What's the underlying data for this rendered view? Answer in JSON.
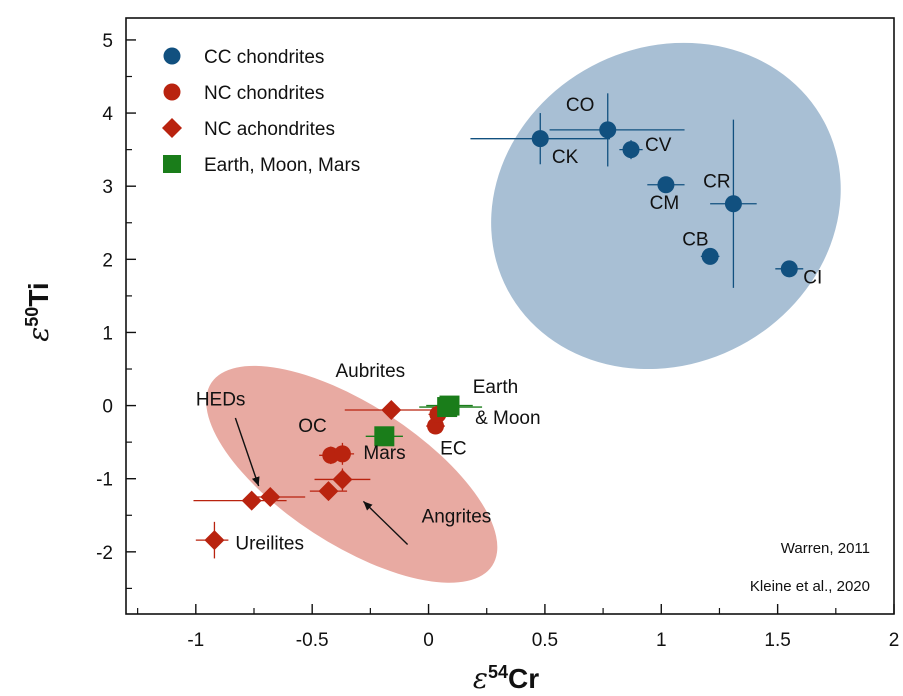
{
  "chart_data": {
    "type": "scatter",
    "xlabel_symbol": "ε",
    "xlabel_sup": "54",
    "xlabel_main": "Cr",
    "ylabel_symbol": "ε",
    "ylabel_sup": "50",
    "ylabel_main": "Ti",
    "xlim": [
      -1.3,
      2.0
    ],
    "ylim": [
      -2.85,
      5.3
    ],
    "xticks": [
      -1,
      -0.5,
      0,
      0.5,
      1,
      1.5,
      2
    ],
    "xtick_labels": [
      "-1",
      "-0.5",
      "0",
      "0.5",
      "1",
      "1.5",
      "2"
    ],
    "yticks": [
      -2,
      -1,
      0,
      1,
      2,
      3,
      4,
      5
    ],
    "ytick_labels": [
      "-2",
      "-1",
      "0",
      "1",
      "2",
      "3",
      "4",
      "5"
    ],
    "grid": false,
    "legend_position": "top-left",
    "colors": {
      "cc": "#11507f",
      "nc": "#b9230f",
      "planet": "#1a7d1a",
      "cc_ellipse": "#a8bfd4",
      "nc_ellipse": "#e8aaa2"
    },
    "legend": [
      {
        "label": "CC chondrites",
        "marker": "circle",
        "color": "#11507f"
      },
      {
        "label": "NC chondrites",
        "marker": "circle",
        "color": "#b9230f"
      },
      {
        "label": "NC achondrites",
        "marker": "diamond",
        "color": "#b9230f"
      },
      {
        "label": "Earth, Moon, Mars",
        "marker": "square",
        "color": "#1a7d1a"
      }
    ],
    "series": [
      {
        "name": "CC chondrites",
        "marker": "circle",
        "color": "#11507f",
        "points": [
          {
            "label": "CK",
            "x": 0.48,
            "y": 3.65,
            "xerr_lo": 0.3,
            "xerr_hi": 0.3,
            "yerr": 0.35
          },
          {
            "label": "CO",
            "x": 0.77,
            "y": 3.77,
            "xerr_lo": 0.25,
            "xerr_hi": 0.33,
            "yerr": 0.5
          },
          {
            "label": "CV",
            "x": 0.87,
            "y": 3.5,
            "xerr_lo": 0.05,
            "xerr_hi": 0.05,
            "yerr": 0.13
          },
          {
            "label": "CM",
            "x": 1.02,
            "y": 3.02,
            "xerr_lo": 0.08,
            "xerr_hi": 0.08,
            "yerr": 0.05
          },
          {
            "label": "CR",
            "x": 1.31,
            "y": 2.76,
            "xerr_lo": 0.1,
            "xerr_hi": 0.1,
            "yerr": 1.15
          },
          {
            "label": "CB",
            "x": 1.21,
            "y": 2.04,
            "xerr_lo": 0.04,
            "xerr_hi": 0.04,
            "yerr": 0.06
          },
          {
            "label": "CI",
            "x": 1.55,
            "y": 1.87,
            "xerr_lo": 0.06,
            "xerr_hi": 0.06,
            "yerr": 0.08
          }
        ]
      },
      {
        "name": "NC chondrites",
        "marker": "circle",
        "color": "#b9230f",
        "points": [
          {
            "label": "OC",
            "x": -0.42,
            "y": -0.68,
            "xerr_lo": 0.05,
            "xerr_hi": 0.05,
            "yerr": 0.12
          },
          {
            "label": "OC",
            "x": -0.37,
            "y": -0.66,
            "xerr_lo": 0.05,
            "xerr_hi": 0.05,
            "yerr": 0.15
          },
          {
            "label": "EC",
            "x": 0.03,
            "y": -0.28,
            "xerr_lo": 0.04,
            "xerr_hi": 0.04,
            "yerr": 0.1
          },
          {
            "label": "EC",
            "x": 0.04,
            "y": -0.12,
            "xerr_lo": 0.04,
            "xerr_hi": 0.04,
            "yerr": 0.08
          }
        ]
      },
      {
        "name": "NC achondrites",
        "marker": "diamond",
        "color": "#b9230f",
        "points": [
          {
            "label": "Aubrites",
            "x": -0.16,
            "y": -0.06,
            "xerr_lo": 0.2,
            "xerr_hi": 0.2,
            "yerr": 0.06
          },
          {
            "label": "Angrites",
            "x": -0.37,
            "y": -1.01,
            "xerr_lo": 0.12,
            "xerr_hi": 0.12,
            "yerr": 0.15
          },
          {
            "label": "Angrites",
            "x": -0.43,
            "y": -1.17,
            "xerr_lo": 0.08,
            "xerr_hi": 0.08,
            "yerr": 0.12
          },
          {
            "label": "HEDs",
            "x": -0.68,
            "y": -1.25,
            "xerr_lo": 0.1,
            "xerr_hi": 0.15,
            "yerr": 0.08
          },
          {
            "label": "HEDs",
            "x": -0.76,
            "y": -1.3,
            "xerr_lo": 0.25,
            "xerr_hi": 0.15,
            "yerr": 0.08
          },
          {
            "label": "Ureilites",
            "x": -0.92,
            "y": -1.84,
            "xerr_lo": 0.08,
            "xerr_hi": 0.06,
            "yerr": 0.25
          }
        ]
      },
      {
        "name": "Earth, Moon, Mars",
        "marker": "square",
        "color": "#1a7d1a",
        "points": [
          {
            "label": "Mars",
            "x": -0.19,
            "y": -0.42,
            "xerr_lo": 0.08,
            "xerr_hi": 0.08,
            "yerr": 0.06
          },
          {
            "label": "Earth",
            "x": 0.08,
            "y": -0.02,
            "xerr_lo": 0.12,
            "xerr_hi": 0.15,
            "yerr": 0.06
          },
          {
            "label": "Moon",
            "x": 0.09,
            "y": 0.0,
            "xerr_lo": 0.1,
            "xerr_hi": 0.1,
            "yerr": 0.05
          }
        ]
      }
    ],
    "regions": [
      {
        "name": "CC chondrites",
        "center": [
          1.02,
          2.73
        ],
        "rx": 0.77,
        "ry": 0.68,
        "angle_deg": 28,
        "color": "#a8bfd4"
      },
      {
        "name": "NC chondrites",
        "center": [
          -0.33,
          -0.94
        ],
        "rx": 0.72,
        "ry": 0.3,
        "angle_deg": -33,
        "color": "#e8aaa2"
      }
    ],
    "annotations": [
      {
        "text": "CK",
        "x": 0.53,
        "y": 3.32
      },
      {
        "text": "CO",
        "x": 0.59,
        "y": 4.03
      },
      {
        "text": "CV",
        "x": 0.93,
        "y": 3.48
      },
      {
        "text": "CM",
        "x": 0.95,
        "y": 2.69
      },
      {
        "text": "CR",
        "x": 1.18,
        "y": 2.98
      },
      {
        "text": "CB",
        "x": 1.09,
        "y": 2.19
      },
      {
        "text": "CI",
        "x": 1.61,
        "y": 1.67
      },
      {
        "text": "OC",
        "x": -0.56,
        "y": -0.36
      },
      {
        "text": "Mars",
        "x": -0.28,
        "y": -0.73
      },
      {
        "text": "EC",
        "x": 0.05,
        "y": -0.67
      },
      {
        "text": "Aubrites",
        "x": -0.4,
        "y": 0.39
      },
      {
        "text": "Earth",
        "x": 0.19,
        "y": 0.17
      },
      {
        "text": "& Moon",
        "x": 0.2,
        "y": -0.25
      },
      {
        "text": "HEDs",
        "x": -1.0,
        "y": 0.0
      },
      {
        "text": "Angrites",
        "x": -0.03,
        "y": -1.6
      },
      {
        "text": "Ureilites",
        "x": -0.83,
        "y": -1.97
      }
    ],
    "arrows": [
      {
        "name": "heds-arrow",
        "from": [
          -0.83,
          -0.17
        ],
        "to": [
          -0.73,
          -1.1
        ]
      },
      {
        "name": "angrites-arrow",
        "from": [
          -0.09,
          -1.9
        ],
        "to": [
          -0.28,
          -1.31
        ]
      }
    ],
    "credits": [
      "Warren, 2011",
      "Kleine et al., 2020"
    ]
  }
}
